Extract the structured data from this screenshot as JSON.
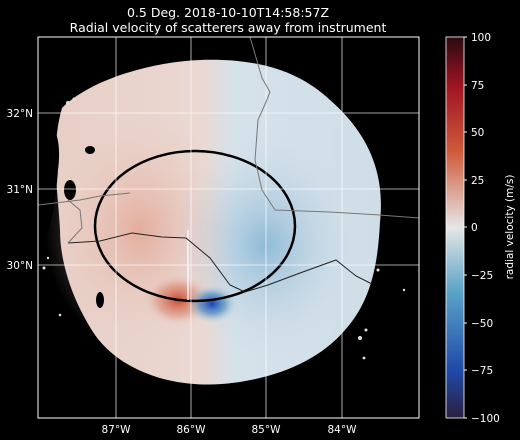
{
  "chart_data": {
    "type": "heatmap",
    "title_line1": "0.5 Deg. 2018-10-10T14:58:57Z",
    "title_line2": "Radial velocity of scatterers away from instrument",
    "x_ticks": [
      {
        "value": -87,
        "label": "87°W"
      },
      {
        "value": -86,
        "label": "86°W"
      },
      {
        "value": -85,
        "label": "85°W"
      },
      {
        "value": -84,
        "label": "84°W"
      }
    ],
    "y_ticks": [
      {
        "value": 32,
        "label": "32°N"
      },
      {
        "value": 31,
        "label": "31°N"
      },
      {
        "value": 30,
        "label": "30°N"
      }
    ],
    "xlim": [
      -88.0,
      -83.0
    ],
    "ylim": [
      28.0,
      33.0
    ],
    "grid": true,
    "radar_site": {
      "lon": -85.95,
      "lat": 29.55
    },
    "colorbar": {
      "label": "radial velocity (m/s)",
      "range": [
        -100,
        100
      ],
      "ticks": [
        {
          "value": 100,
          "label": "100"
        },
        {
          "value": 75,
          "label": "75"
        },
        {
          "value": 50,
          "label": "50"
        },
        {
          "value": 25,
          "label": "25"
        },
        {
          "value": 0,
          "label": "0"
        },
        {
          "value": -25,
          "label": "−25"
        },
        {
          "value": -50,
          "label": "−50"
        },
        {
          "value": -75,
          "label": "−75"
        },
        {
          "value": -100,
          "label": "−100"
        }
      ],
      "stops": [
        "#2b1f3f",
        "#1f4aa8",
        "#5aa3c8",
        "#e6e6e6",
        "#cf5a3a",
        "#a01423",
        "#2a0a12"
      ]
    }
  }
}
